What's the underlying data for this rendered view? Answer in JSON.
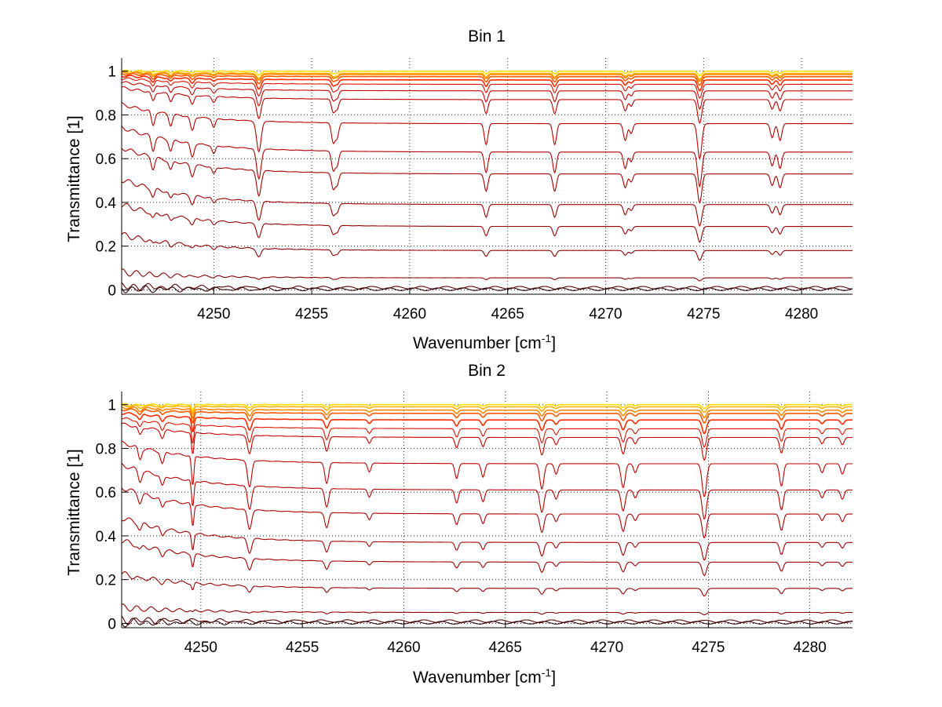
{
  "chart_data": [
    {
      "type": "line",
      "title": "Bin 1",
      "xlabel": "Wavenumber [cm",
      "xlabel_sup": "-1",
      "xlabel_end": "]",
      "ylabel": "Transmittance [1]",
      "xlim": [
        4245.3,
        4282.6
      ],
      "ylim": [
        -0.02,
        1.06
      ],
      "xticks": [
        4250,
        4255,
        4260,
        4265,
        4270,
        4275,
        4280
      ],
      "yticks": [
        0,
        0.2,
        0.4,
        0.6,
        0.8,
        1
      ],
      "ytick_labels": [
        "0",
        "0.2",
        "0.4",
        "0.6",
        "0.8",
        "1"
      ],
      "grid": true,
      "line_levels": [
        1.0,
        0.99,
        0.985,
        0.975,
        0.96,
        0.94,
        0.91,
        0.87,
        0.76,
        0.63,
        0.53,
        0.39,
        0.29,
        0.18,
        0.055,
        0.01,
        0.003
      ],
      "absorption_lines": [
        {
          "x": 4246.9,
          "depth": 0.1,
          "width": 0.12
        },
        {
          "x": 4247.8,
          "depth": 0.08,
          "width": 0.12
        },
        {
          "x": 4248.9,
          "depth": 0.1,
          "width": 0.13
        },
        {
          "x": 4250.0,
          "depth": 0.06,
          "width": 0.12
        },
        {
          "x": 4252.3,
          "depth": 0.22,
          "width": 0.16
        },
        {
          "x": 4256.1,
          "depth": 0.14,
          "width": 0.13
        },
        {
          "x": 4256.3,
          "depth": 0.1,
          "width": 0.12
        },
        {
          "x": 4263.9,
          "depth": 0.15,
          "width": 0.13
        },
        {
          "x": 4267.4,
          "depth": 0.15,
          "width": 0.13
        },
        {
          "x": 4271.0,
          "depth": 0.12,
          "width": 0.13
        },
        {
          "x": 4271.3,
          "depth": 0.07,
          "width": 0.12
        },
        {
          "x": 4274.8,
          "depth": 0.25,
          "width": 0.15
        },
        {
          "x": 4278.5,
          "depth": 0.1,
          "width": 0.13
        },
        {
          "x": 4278.9,
          "depth": 0.12,
          "width": 0.13
        }
      ],
      "spike": null,
      "line_colors": [
        "#ffdd00",
        "#ffb000",
        "#ff8800",
        "#ff5a00",
        "#ff2a00",
        "#e01000",
        "#c80000",
        "#c00000",
        "#b80000",
        "#b00000",
        "#a80000",
        "#a00000",
        "#980000",
        "#900000",
        "#880000",
        "#5a0000",
        "#300000"
      ]
    },
    {
      "type": "line",
      "title": "Bin 2",
      "xlabel": "Wavenumber [cm",
      "xlabel_sup": "-1",
      "xlabel_end": "]",
      "ylabel": "Transmittance [1]",
      "xlim": [
        4246.1,
        4282.1
      ],
      "ylim": [
        -0.02,
        1.06
      ],
      "xticks": [
        4250,
        4255,
        4260,
        4265,
        4270,
        4275,
        4280
      ],
      "yticks": [
        0,
        0.2,
        0.4,
        0.6,
        0.8,
        1
      ],
      "ytick_labels": [
        "0",
        "0.2",
        "0.4",
        "0.6",
        "0.8",
        "1"
      ],
      "grid": true,
      "line_levels": [
        1.0,
        0.99,
        0.975,
        0.96,
        0.93,
        0.89,
        0.85,
        0.73,
        0.61,
        0.5,
        0.37,
        0.28,
        0.16,
        0.05,
        0.01,
        0.003
      ],
      "absorption_lines": [
        {
          "x": 4247.0,
          "depth": 0.08,
          "width": 0.12
        },
        {
          "x": 4248.1,
          "depth": 0.08,
          "width": 0.12
        },
        {
          "x": 4252.4,
          "depth": 0.18,
          "width": 0.14
        },
        {
          "x": 4256.2,
          "depth": 0.14,
          "width": 0.13
        },
        {
          "x": 4258.3,
          "depth": 0.06,
          "width": 0.11
        },
        {
          "x": 4262.6,
          "depth": 0.1,
          "width": 0.12
        },
        {
          "x": 4263.9,
          "depth": 0.09,
          "width": 0.12
        },
        {
          "x": 4266.8,
          "depth": 0.17,
          "width": 0.14
        },
        {
          "x": 4267.5,
          "depth": 0.07,
          "width": 0.12
        },
        {
          "x": 4270.8,
          "depth": 0.16,
          "width": 0.14
        },
        {
          "x": 4271.4,
          "depth": 0.06,
          "width": 0.12
        },
        {
          "x": 4274.8,
          "depth": 0.22,
          "width": 0.15
        },
        {
          "x": 4278.6,
          "depth": 0.15,
          "width": 0.13
        },
        {
          "x": 4280.6,
          "depth": 0.06,
          "width": 0.12
        },
        {
          "x": 4281.6,
          "depth": 0.07,
          "width": 0.12
        }
      ],
      "spike": {
        "x": 4249.6,
        "depth": 0.2
      },
      "line_colors": [
        "#ffdd00",
        "#ffb000",
        "#ff8800",
        "#ff5a00",
        "#ff2a00",
        "#e01000",
        "#c80000",
        "#c00000",
        "#b80000",
        "#b00000",
        "#a80000",
        "#a00000",
        "#980000",
        "#900000",
        "#5a0000",
        "#300000"
      ]
    }
  ]
}
